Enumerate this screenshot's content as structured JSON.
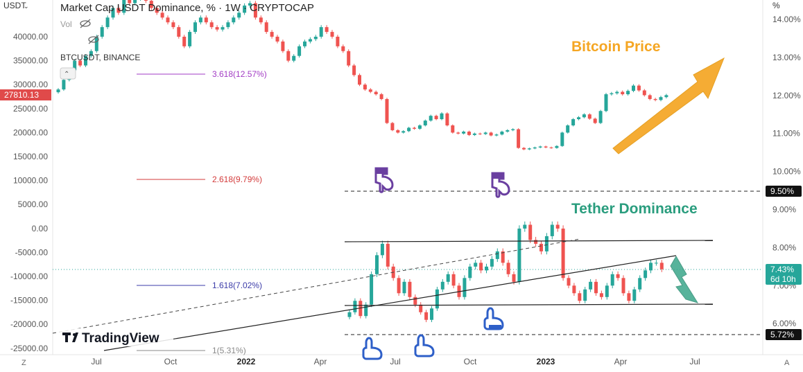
{
  "header": {
    "symbol_left": "USDT",
    "title": "Market Cap USDT Dominance, % · 1W · CRYPTOCAP",
    "vol_label": "Vol",
    "sub_symbol": "BTCUSDT, BINANCE",
    "right_unit": "%"
  },
  "logo": {
    "text": "TradingView"
  },
  "annotations": {
    "bitcoin_price": "Bitcoin Price",
    "tether_dominance": "Tether Dominance"
  },
  "colors": {
    "up": "#26a69a",
    "down": "#ef5350",
    "orange": "#f5a623",
    "teal_text": "#2a9d7e",
    "hand_purple": "#6a3fa0",
    "hand_blue": "#2e5fc8"
  },
  "price_badge": {
    "value": "27810.13",
    "color": "#e04a4a"
  },
  "dominance_badge": {
    "value": "7.43%",
    "countdown": "6d 10h",
    "color": "#26a69a"
  },
  "level_badges": [
    {
      "value": "9.50%"
    },
    {
      "value": "5.72%"
    }
  ],
  "fib_levels": [
    {
      "label": "3.618(12.57%)",
      "color": "#a23bc4"
    },
    {
      "label": "2.618(9.79%)",
      "color": "#d33a3a"
    },
    {
      "label": "1.618(7.02%)",
      "color": "#3b3ba8"
    },
    {
      "label": "1(5.31%)",
      "color": "#888888"
    }
  ],
  "left_axis_ticks": [
    "40000.00",
    "35000.00",
    "30000.00",
    "25000.00",
    "20000.00",
    "15000.00",
    "10000.00",
    "5000.00",
    "0.00",
    "-5000.00",
    "-10000.00",
    "-15000.00",
    "-20000.00",
    "-25000.00"
  ],
  "right_axis_ticks": [
    "14.00%",
    "13.00%",
    "12.00%",
    "11.00%",
    "10.00%",
    "9.00%",
    "8.00%",
    "7.00%",
    "6.00%"
  ],
  "time_axis": [
    "Jul",
    "Oct",
    "2022",
    "Apr",
    "Jul",
    "Oct",
    "2023",
    "Apr",
    "Jul"
  ],
  "corner_buttons": {
    "left": "Z",
    "right": "A"
  },
  "chart_data": [
    {
      "type": "candlestick",
      "name": "BTCUSDT, BINANCE",
      "y_axis": "left",
      "series_ohlc_approx_close": [
        29000,
        31000,
        33000,
        35000,
        34000,
        36000,
        37000,
        40000,
        42000,
        44000,
        46000,
        45000,
        48000,
        47000,
        48000,
        49000,
        47500,
        46000,
        45000,
        44000,
        43000,
        42000,
        40000,
        38000,
        41000,
        43000,
        44000,
        43000,
        42000,
        41500,
        42000,
        43000,
        44000,
        45000,
        46500,
        47000,
        44000,
        43000,
        41000,
        40000,
        39000,
        37000,
        35000,
        36000,
        38000,
        39000,
        39500,
        40000,
        42000,
        41000,
        40000,
        38000,
        37000,
        34000,
        32000,
        30000,
        29000,
        28500,
        28000,
        27000,
        22000,
        20500,
        20000,
        20300,
        21000,
        20800,
        21500,
        22500,
        23500,
        22800,
        24000,
        21500,
        20000,
        19800,
        20200,
        19500,
        19800,
        19700,
        20000,
        19400,
        19600,
        20200,
        20500,
        20700,
        16800,
        16500,
        16700,
        16900,
        17100,
        16900,
        16800,
        17200,
        20000,
        21500,
        22800,
        23200,
        23800,
        22900,
        22000,
        24500,
        28000,
        28200,
        28500,
        28000,
        28700,
        29800,
        28800,
        27800,
        27000,
        26800,
        27400,
        27810
      ]
    },
    {
      "type": "candlestick",
      "name": "Market Cap USDT Dominance, %",
      "y_axis": "right",
      "series_ohlc_approx_close": [
        6.3,
        6.6,
        6.2,
        6.5,
        7.3,
        7.8,
        8.1,
        7.5,
        7.2,
        6.8,
        7.1,
        6.7,
        6.5,
        6.3,
        6.1,
        6.4,
        6.9,
        7.1,
        7.3,
        7.0,
        6.7,
        7.2,
        7.5,
        7.6,
        7.4,
        7.5,
        7.7,
        7.9,
        7.6,
        7.3,
        7.1,
        8.5,
        8.6,
        8.2,
        8.1,
        7.9,
        8.3,
        8.6,
        8.5,
        7.2,
        7.0,
        6.8,
        6.6,
        6.9,
        7.1,
        6.8,
        6.7,
        7.0,
        7.3,
        7.2,
        6.8,
        6.6,
        6.9,
        7.2,
        7.4,
        7.6,
        7.6,
        7.43
      ]
    }
  ]
}
